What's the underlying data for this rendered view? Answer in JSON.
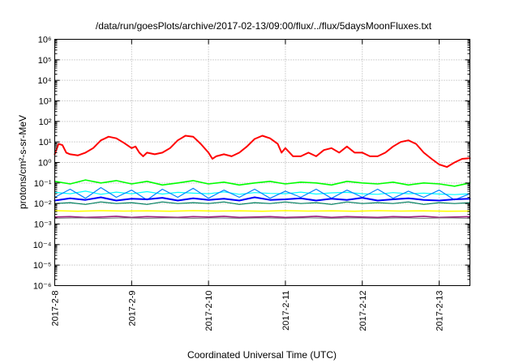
{
  "chart_data": {
    "type": "line",
    "title": "/data/run/goesPlots/archive/2017-02-13/09:00/flux/../flux/5daysMoonFluxes.txt",
    "xlabel": "Coordinated Universal Time (UTC)",
    "ylabel": "protons/cm²-s-sr-MeV",
    "yscale": "log",
    "ylim": [
      1e-06,
      1000000.0
    ],
    "xlim": [
      0,
      5.4
    ],
    "grid": true,
    "x_ticks": [
      {
        "value": 0,
        "label": "2017-2-8"
      },
      {
        "value": 1,
        "label": "2017-2-9"
      },
      {
        "value": 2,
        "label": "2017-2-10"
      },
      {
        "value": 3,
        "label": "2017-2-11"
      },
      {
        "value": 4,
        "label": "2017-2-12"
      },
      {
        "value": 5,
        "label": "2017-2-13"
      }
    ],
    "y_tick_exponents": [
      -6,
      -5,
      -4,
      -3,
      -2,
      -1,
      0,
      1,
      2,
      3,
      4,
      5,
      6
    ],
    "series": [
      {
        "color": "#ff0000",
        "width": 2.0,
        "x": [
          0,
          0.05,
          0.1,
          0.15,
          0.2,
          0.3,
          0.4,
          0.5,
          0.6,
          0.7,
          0.8,
          0.9,
          1.0,
          1.05,
          1.1,
          1.15,
          1.2,
          1.3,
          1.4,
          1.5,
          1.6,
          1.7,
          1.8,
          1.9,
          2.0,
          2.05,
          2.1,
          2.2,
          2.3,
          2.4,
          2.5,
          2.6,
          2.7,
          2.8,
          2.9,
          2.95,
          3.0,
          3.1,
          3.2,
          3.3,
          3.4,
          3.5,
          3.6,
          3.7,
          3.8,
          3.9,
          4.0,
          4.1,
          4.2,
          4.3,
          4.4,
          4.5,
          4.6,
          4.7,
          4.8,
          4.9,
          5.0,
          5.1,
          5.2,
          5.3,
          5.4
        ],
        "y": [
          2.5,
          8,
          7,
          3,
          2.5,
          2.2,
          3,
          5,
          12,
          18,
          15,
          9,
          5,
          6,
          3,
          2,
          3,
          2.5,
          3,
          5,
          12,
          20,
          18,
          8,
          3,
          1.5,
          2,
          2.5,
          2,
          3,
          6,
          14,
          20,
          15,
          8,
          3,
          5,
          2,
          2,
          3,
          2,
          4,
          5,
          3,
          6,
          3,
          3,
          2,
          2,
          3,
          6,
          10,
          12,
          8,
          3,
          1.5,
          0.8,
          0.6,
          1,
          1.5,
          1.6
        ]
      },
      {
        "color": "#00ff00",
        "width": 1.6,
        "x": [
          0,
          0.2,
          0.4,
          0.6,
          0.8,
          1.0,
          1.2,
          1.4,
          1.6,
          1.8,
          2.0,
          2.2,
          2.4,
          2.6,
          2.8,
          3.0,
          3.2,
          3.4,
          3.6,
          3.8,
          4.0,
          4.2,
          4.4,
          4.6,
          4.8,
          5.0,
          5.2,
          5.4
        ],
        "y": [
          0.12,
          0.09,
          0.14,
          0.1,
          0.13,
          0.09,
          0.12,
          0.08,
          0.1,
          0.13,
          0.09,
          0.11,
          0.08,
          0.1,
          0.12,
          0.09,
          0.11,
          0.1,
          0.08,
          0.12,
          0.1,
          0.09,
          0.11,
          0.08,
          0.1,
          0.09,
          0.07,
          0.1
        ]
      },
      {
        "color": "#00ffff",
        "width": 1.2,
        "x": [
          0,
          0.2,
          0.4,
          0.6,
          0.8,
          1.0,
          1.2,
          1.4,
          1.6,
          1.8,
          2.0,
          2.2,
          2.4,
          2.6,
          2.8,
          3.0,
          3.2,
          3.4,
          3.6,
          3.8,
          4.0,
          4.2,
          4.4,
          4.6,
          4.8,
          5.0,
          5.2,
          5.4
        ],
        "y": [
          0.035,
          0.03,
          0.04,
          0.028,
          0.036,
          0.03,
          0.038,
          0.029,
          0.035,
          0.032,
          0.03,
          0.037,
          0.028,
          0.034,
          0.031,
          0.03,
          0.036,
          0.029,
          0.033,
          0.035,
          0.03,
          0.028,
          0.034,
          0.03,
          0.032,
          0.029,
          0.027,
          0.03
        ]
      },
      {
        "color": "#0080ff",
        "width": 1.2,
        "x": [
          0,
          0.2,
          0.4,
          0.6,
          0.8,
          1.0,
          1.2,
          1.4,
          1.6,
          1.8,
          2.0,
          2.2,
          2.4,
          2.6,
          2.8,
          3.0,
          3.2,
          3.4,
          3.6,
          3.8,
          4.0,
          4.2,
          4.4,
          4.6,
          4.8,
          5.0,
          5.2,
          5.4
        ],
        "y": [
          0.02,
          0.05,
          0.018,
          0.06,
          0.02,
          0.045,
          0.015,
          0.05,
          0.02,
          0.055,
          0.018,
          0.045,
          0.02,
          0.05,
          0.018,
          0.04,
          0.02,
          0.05,
          0.018,
          0.045,
          0.02,
          0.05,
          0.018,
          0.04,
          0.02,
          0.045,
          0.015,
          0.03
        ]
      },
      {
        "color": "#0000ff",
        "width": 2.0,
        "x": [
          0,
          0.2,
          0.4,
          0.6,
          0.8,
          1.0,
          1.2,
          1.4,
          1.6,
          1.8,
          2.0,
          2.2,
          2.4,
          2.6,
          2.8,
          3.0,
          3.2,
          3.4,
          3.6,
          3.8,
          4.0,
          4.2,
          4.4,
          4.6,
          4.8,
          5.0,
          5.2,
          5.4
        ],
        "y": [
          0.014,
          0.018,
          0.015,
          0.02,
          0.014,
          0.017,
          0.016,
          0.019,
          0.014,
          0.018,
          0.015,
          0.017,
          0.014,
          0.02,
          0.015,
          0.016,
          0.018,
          0.014,
          0.017,
          0.015,
          0.019,
          0.014,
          0.016,
          0.018,
          0.015,
          0.014,
          0.016,
          0.017
        ]
      },
      {
        "color": "#008060",
        "width": 1.2,
        "x": [
          0,
          0.2,
          0.4,
          0.6,
          0.8,
          1.0,
          1.2,
          1.4,
          1.6,
          1.8,
          2.0,
          2.2,
          2.4,
          2.6,
          2.8,
          3.0,
          3.2,
          3.4,
          3.6,
          3.8,
          4.0,
          4.2,
          4.4,
          4.6,
          4.8,
          5.0,
          5.2,
          5.4
        ],
        "y": [
          0.01,
          0.011,
          0.009,
          0.012,
          0.01,
          0.011,
          0.009,
          0.012,
          0.01,
          0.011,
          0.01,
          0.012,
          0.009,
          0.011,
          0.01,
          0.012,
          0.01,
          0.011,
          0.009,
          0.012,
          0.01,
          0.011,
          0.01,
          0.012,
          0.009,
          0.011,
          0.01,
          0.011
        ]
      },
      {
        "color": "#ffff00",
        "width": 1.6,
        "x": [
          0,
          0.3,
          0.6,
          0.9,
          1.2,
          1.5,
          1.8,
          2.1,
          2.4,
          2.7,
          3.0,
          3.3,
          3.6,
          3.9,
          4.2,
          4.5,
          4.8,
          5.1,
          5.4
        ],
        "y": [
          0.0045,
          0.0042,
          0.0045,
          0.0043,
          0.0044,
          0.0042,
          0.0045,
          0.0043,
          0.0044,
          0.0042,
          0.0045,
          0.0043,
          0.0044,
          0.0042,
          0.0045,
          0.0043,
          0.0044,
          0.0042,
          0.0043
        ]
      },
      {
        "color": "#a02080",
        "width": 1.6,
        "x": [
          0,
          0.2,
          0.4,
          0.6,
          0.8,
          1.0,
          1.2,
          1.4,
          1.6,
          1.8,
          2.0,
          2.2,
          2.4,
          2.6,
          2.8,
          3.0,
          3.2,
          3.4,
          3.6,
          3.8,
          4.0,
          4.2,
          4.4,
          4.6,
          4.8,
          5.0,
          5.2,
          5.4
        ],
        "y": [
          0.0022,
          0.0023,
          0.0021,
          0.0022,
          0.0024,
          0.0021,
          0.0023,
          0.0022,
          0.0021,
          0.0023,
          0.0022,
          0.0024,
          0.0021,
          0.0022,
          0.0023,
          0.0021,
          0.0022,
          0.0024,
          0.0021,
          0.0023,
          0.0022,
          0.0021,
          0.0023,
          0.0022,
          0.0024,
          0.0021,
          0.0022,
          0.0023
        ]
      },
      {
        "color": "#707070",
        "width": 1.0,
        "x": [
          0,
          0.3,
          0.6,
          0.9,
          1.2,
          1.5,
          1.8,
          2.1,
          2.4,
          2.7,
          3.0,
          3.3,
          3.6,
          3.9,
          4.2,
          4.5,
          4.8,
          5.1,
          5.4
        ],
        "y": [
          0.0019,
          0.002,
          0.0019,
          0.002,
          0.0019,
          0.002,
          0.0019,
          0.002,
          0.0019,
          0.002,
          0.0019,
          0.002,
          0.0019,
          0.002,
          0.0019,
          0.002,
          0.0019,
          0.002,
          0.0019
        ]
      }
    ]
  }
}
